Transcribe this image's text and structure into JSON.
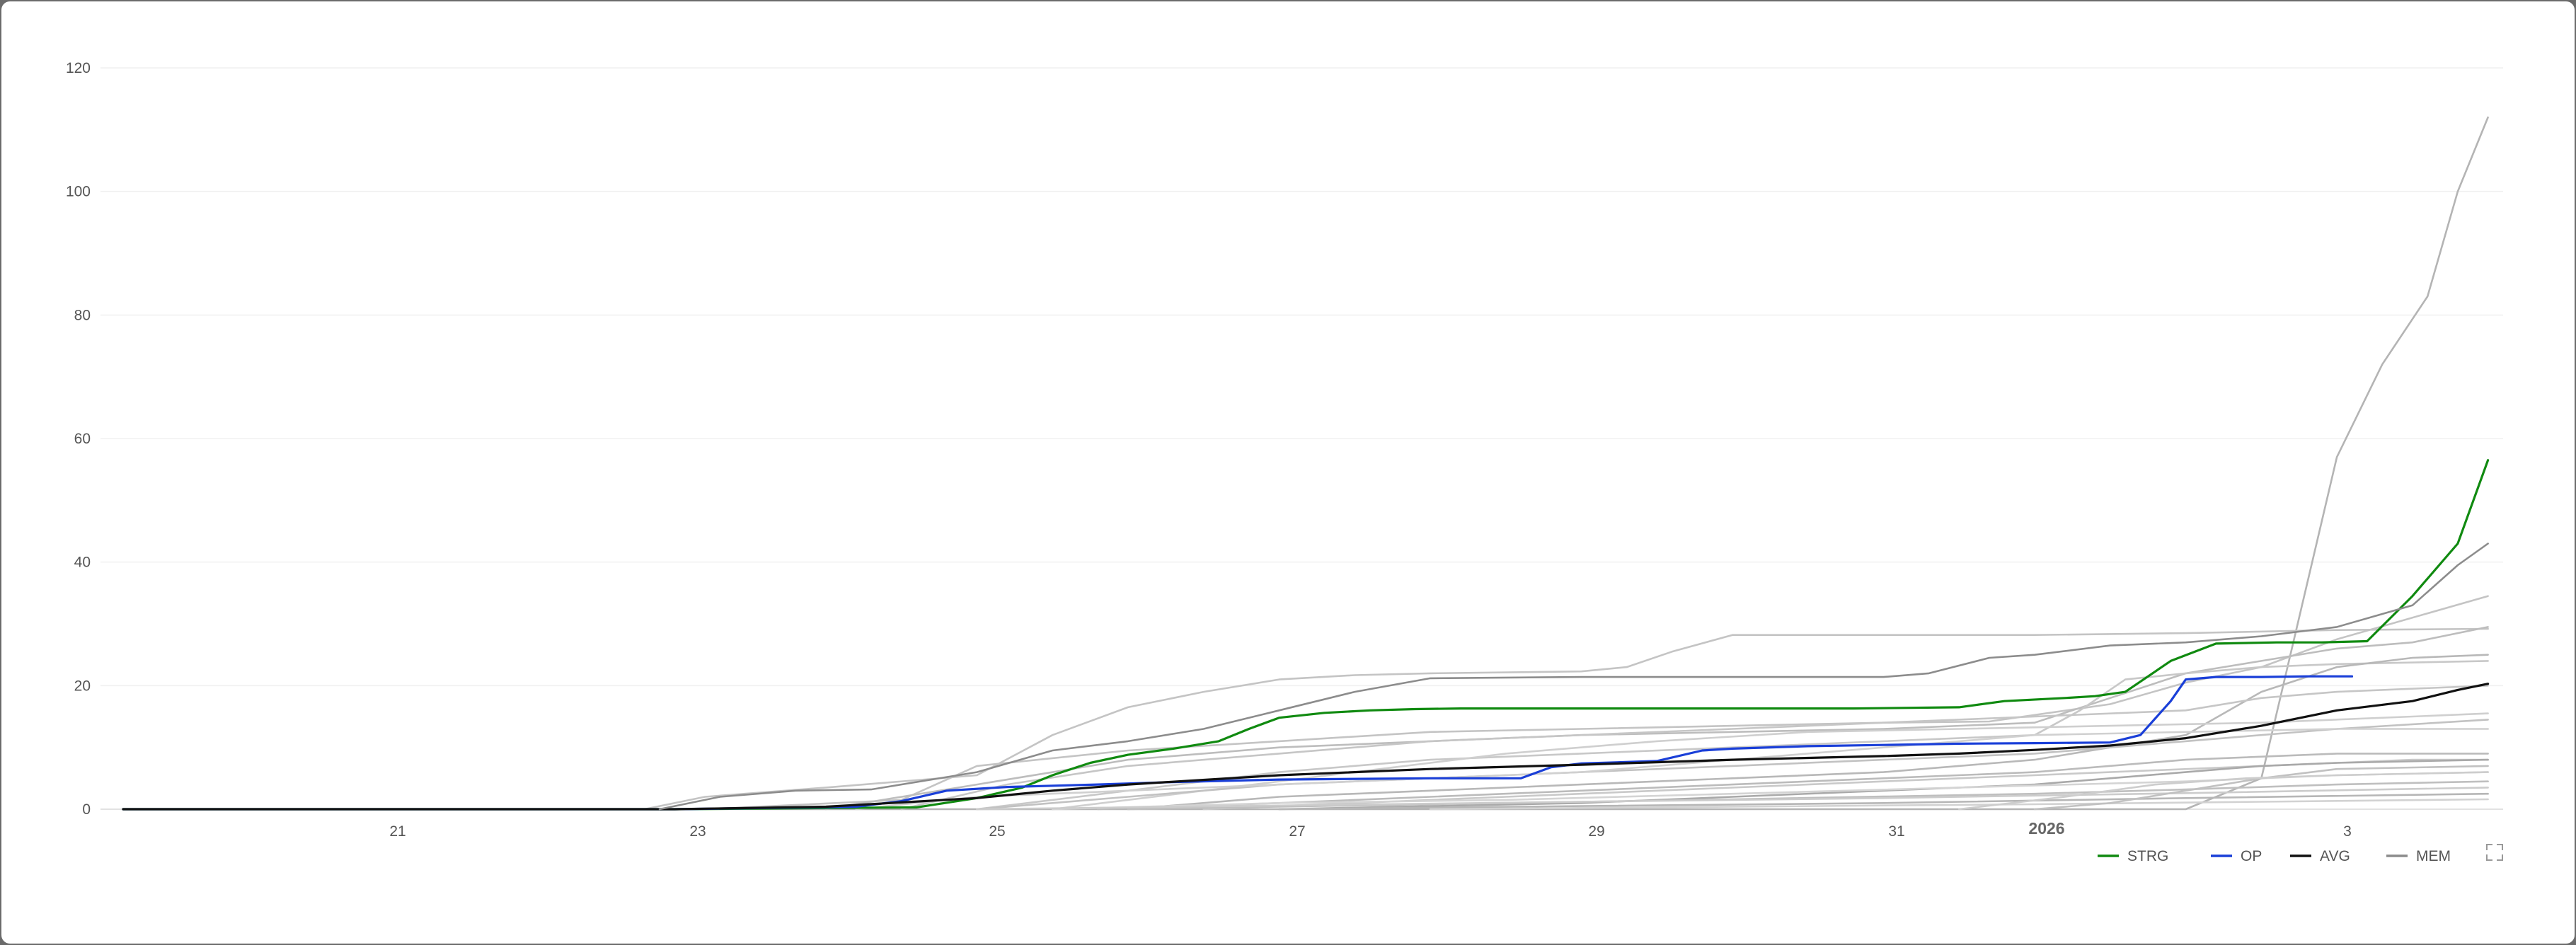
{
  "chart_data": {
    "type": "line",
    "x_tick_labels": [
      "21",
      "23",
      "25",
      "27",
      "29",
      "31",
      "2026",
      "3"
    ],
    "y_ticks": [
      0,
      20,
      40,
      60,
      80,
      100,
      120
    ],
    "ylim": [
      0,
      120
    ],
    "xlim": [
      19.2,
      35.1
    ],
    "grid": "horizontal",
    "legend_position": "bottom-right",
    "series": [
      {
        "name": "STRG",
        "color": "#108a10",
        "width": 3.2,
        "x": [
          19.35,
          23.0,
          24.0,
          24.6,
          25.0,
          25.3,
          25.5,
          25.75,
          26.0,
          26.3,
          26.6,
          26.8,
          27.0,
          27.3,
          27.6,
          27.9,
          28.2,
          29.0,
          30.0,
          30.8,
          31.5,
          31.8,
          32.2,
          32.4,
          32.6,
          32.9,
          33.2,
          33.6,
          33.9,
          34.2,
          34.5,
          34.8,
          35.0
        ],
        "y": [
          0,
          0,
          0.2,
          0.3,
          1.8,
          3.5,
          5.5,
          7.5,
          8.8,
          9.8,
          11,
          13,
          14.8,
          15.6,
          16,
          16.2,
          16.3,
          16.3,
          16.3,
          16.3,
          16.5,
          17.5,
          18,
          18.3,
          19,
          24,
          26.8,
          27,
          27,
          27.2,
          34.5,
          43,
          56.5
        ]
      },
      {
        "name": "OP",
        "color": "#1a3fd8",
        "width": 3.2,
        "x": [
          19.35,
          23.0,
          24.2,
          24.5,
          24.8,
          25.2,
          25.8,
          26.3,
          27.0,
          28.0,
          28.6,
          28.8,
          29.0,
          29.5,
          29.8,
          30.0,
          30.5,
          31.0,
          31.5,
          32.0,
          32.5,
          32.7,
          32.9,
          33.0,
          33.2,
          33.5,
          33.8,
          34.1
        ],
        "y": [
          0,
          0,
          0.4,
          1.3,
          3.0,
          3.6,
          4.0,
          4.4,
          4.8,
          5.0,
          5.0,
          6.8,
          7.4,
          7.8,
          9.5,
          9.8,
          10.2,
          10.4,
          10.6,
          10.7,
          10.8,
          12,
          17.5,
          21.0,
          21.4,
          21.4,
          21.5,
          21.5
        ]
      },
      {
        "name": "AVG",
        "color": "#111111",
        "width": 3.2,
        "x": [
          19.35,
          23.0,
          24.0,
          25.0,
          25.5,
          26.0,
          27.0,
          28.0,
          29.0,
          30.0,
          31.0,
          31.5,
          32.0,
          32.5,
          33.0,
          33.5,
          34.0,
          34.5,
          34.8,
          35.0
        ],
        "y": [
          0,
          0,
          0.4,
          1.8,
          3.0,
          4.0,
          5.5,
          6.5,
          7.2,
          8.0,
          8.6,
          9.0,
          9.6,
          10.3,
          11.5,
          13.5,
          16.0,
          17.5,
          19.3,
          20.3
        ]
      },
      {
        "name": "MEM",
        "color": "#8c8c8c",
        "width": 2.6,
        "x": [
          22.9,
          23.3,
          23.8,
          24.3,
          25.0,
          25.5,
          26.0,
          26.5,
          27.0,
          27.5,
          28.0,
          29.0,
          30.0,
          31.0,
          31.3,
          31.7,
          32.0,
          32.5,
          33.0,
          33.5,
          34.0,
          34.5,
          34.8,
          35.0
        ],
        "y": [
          0,
          2,
          3,
          3.2,
          6,
          9.5,
          11,
          13,
          16,
          19,
          21.2,
          21.4,
          21.4,
          21.4,
          22,
          24.5,
          25,
          26.5,
          27,
          28,
          29.5,
          33,
          39.5,
          43
        ]
      },
      {
        "name": "",
        "color": "#b4b4b4",
        "width": 2.6,
        "x": [
          19.35,
          33.0,
          33.5,
          34.0,
          34.3,
          34.6,
          34.8,
          35.0
        ],
        "y": [
          0,
          0,
          5,
          57,
          72,
          83,
          100,
          112
        ]
      },
      {
        "name": "",
        "color": "#c4c4c4",
        "width": 2.6,
        "x": [
          22.8,
          23.2,
          24.0,
          25.0,
          25.5,
          26.0,
          26.5,
          27.0,
          27.5,
          28.0,
          29.0,
          29.3,
          29.6,
          30.0,
          30.5,
          31.0,
          31.5,
          32.0,
          33.0,
          34.0,
          35.0
        ],
        "y": [
          0,
          2,
          3.5,
          5.5,
          12,
          16.5,
          19,
          21,
          21.7,
          22,
          22.3,
          23,
          25.5,
          28.2,
          28.2,
          28.2,
          28.2,
          28.2,
          28.5,
          29,
          29.2
        ]
      },
      {
        "name": "",
        "color": "#c4c4c4",
        "width": 2.6,
        "x": [
          23.2,
          24.5,
          25.0,
          26.0,
          27.0,
          28.0,
          29.0,
          30.0,
          31.0,
          31.7,
          32.5,
          33.0,
          33.5,
          34.0,
          35.0
        ],
        "y": [
          0,
          1.5,
          7,
          9.5,
          11,
          12.5,
          13,
          13.5,
          14,
          14.2,
          17,
          20.5,
          23,
          27.5,
          34.5
        ]
      },
      {
        "name": "",
        "color": "#bdbdbd",
        "width": 2.6,
        "x": [
          24.0,
          25.0,
          26.0,
          27.0,
          28.0,
          29.0,
          30.0,
          31.0,
          32.0,
          32.5,
          33.0,
          33.5,
          34.0,
          34.5,
          35.0
        ],
        "y": [
          0,
          4,
          8,
          10,
          11,
          12,
          12.5,
          13,
          14,
          18,
          22,
          24,
          26,
          27,
          29.5
        ]
      },
      {
        "name": "",
        "color": "#c8c8c8",
        "width": 2.6,
        "x": [
          25.0,
          26.0,
          27.0,
          28.0,
          29.0,
          30.0,
          31.0,
          32.0,
          32.3,
          32.6,
          33.0,
          33.5,
          34.0,
          35.0
        ],
        "y": [
          0,
          3,
          6,
          8,
          9,
          10,
          11,
          12,
          16,
          21,
          22,
          23,
          23.5,
          24
        ]
      },
      {
        "name": "",
        "color": "#b8b8b8",
        "width": 2.6,
        "x": [
          26.0,
          27.0,
          28.0,
          29.0,
          30.0,
          31.0,
          32.0,
          33.0,
          33.5,
          34.0,
          34.5,
          35.0
        ],
        "y": [
          0,
          2,
          3,
          4,
          5,
          6,
          8,
          12,
          19,
          23,
          24.5,
          25
        ]
      },
      {
        "name": "",
        "color": "#c6c6c6",
        "width": 2.6,
        "x": [
          24.5,
          25.2,
          26.0,
          27.0,
          28.0,
          29.0,
          30.0,
          31.0,
          32.0,
          33.0,
          33.5,
          34.0,
          35.0
        ],
        "y": [
          0,
          4,
          7,
          9,
          11,
          12,
          13,
          14,
          15,
          16,
          18,
          19,
          20
        ]
      },
      {
        "name": "",
        "color": "#cfcfcf",
        "width": 2.6,
        "x": [
          25.5,
          26.5,
          27.5,
          28.5,
          29.5,
          30.5,
          31.5,
          32.5,
          33.5,
          34.5,
          35.0
        ],
        "y": [
          0,
          3,
          6,
          9,
          11,
          12.5,
          13,
          13.5,
          14,
          15,
          15.5
        ]
      },
      {
        "name": "",
        "color": "#c2c2c2",
        "width": 2.6,
        "x": [
          25.0,
          26.0,
          27.0,
          28.0,
          29.0,
          30.0,
          31.0,
          32.0,
          33.0,
          34.0,
          35.0
        ],
        "y": [
          0,
          2,
          4,
          5,
          6,
          7,
          8,
          9,
          11,
          13,
          14.5
        ]
      },
      {
        "name": "",
        "color": "#d0d0d0",
        "width": 2.6,
        "x": [
          24.2,
          25.0,
          26.0,
          27.0,
          28.0,
          29.0,
          30.0,
          31.0,
          32.0,
          33.0,
          34.0,
          35.0
        ],
        "y": [
          0,
          2,
          3,
          4,
          5,
          6,
          8,
          10,
          12,
          12.5,
          13,
          13
        ]
      },
      {
        "name": "",
        "color": "#bbbbbb",
        "width": 2.6,
        "x": [
          25.8,
          27.0,
          28.0,
          29.0,
          30.0,
          31.0,
          32.0,
          33.0,
          34.0,
          35.0
        ],
        "y": [
          0,
          1,
          2,
          3,
          4,
          5,
          6,
          8,
          9,
          9
        ]
      },
      {
        "name": "",
        "color": "#c9c9c9",
        "width": 2.6,
        "x": [
          26.5,
          27.5,
          28.5,
          29.5,
          30.5,
          31.5,
          32.5,
          33.5,
          34.5,
          35.0
        ],
        "y": [
          0,
          1,
          2,
          3,
          4,
          5,
          6,
          7,
          8,
          8
        ]
      },
      {
        "name": "",
        "color": "#a9a9a9",
        "width": 2.6,
        "x": [
          27.0,
          28.0,
          29.0,
          30.0,
          31.0,
          32.0,
          32.5,
          33.0,
          33.5,
          34.0,
          35.0
        ],
        "y": [
          0,
          0.5,
          1,
          2,
          3,
          4,
          5,
          6,
          7,
          7.5,
          8
        ]
      },
      {
        "name": "",
        "color": "#d4d4d4",
        "width": 2.6,
        "x": [
          25.5,
          27.0,
          28.5,
          30.0,
          31.5,
          33.0,
          34.0,
          35.0
        ],
        "y": [
          0,
          1,
          1.5,
          2.5,
          3.5,
          4.5,
          5.5,
          6
        ]
      },
      {
        "name": "",
        "color": "#bfbfbf",
        "width": 2.6,
        "x": [
          26.0,
          28.0,
          30.0,
          32.0,
          33.0,
          34.0,
          35.0
        ],
        "y": [
          0,
          0.8,
          1.6,
          2.5,
          3.2,
          4.0,
          4.5
        ]
      },
      {
        "name": "",
        "color": "#cccccc",
        "width": 2.6,
        "x": [
          25.0,
          27.0,
          29.0,
          31.0,
          33.0,
          35.0
        ],
        "y": [
          0,
          0.6,
          1.2,
          1.8,
          2.6,
          3.5
        ]
      },
      {
        "name": "",
        "color": "#b6b6b6",
        "width": 2.6,
        "x": [
          27.0,
          29.0,
          31.0,
          33.0,
          35.0
        ],
        "y": [
          0,
          0.5,
          1.0,
          1.8,
          2.5
        ]
      },
      {
        "name": "",
        "color": "#d2d2d2",
        "width": 2.6,
        "x": [
          28.0,
          30.0,
          32.0,
          33.5,
          35.0
        ],
        "y": [
          0,
          0.4,
          0.8,
          1.2,
          1.6
        ]
      },
      {
        "name": "",
        "color": "#c1c1c1",
        "width": 2.6,
        "x": [
          32.0,
          32.5,
          33.0,
          33.5,
          34.0,
          35.0
        ],
        "y": [
          0,
          1,
          3,
          5,
          6.5,
          7
        ]
      },
      {
        "name": "",
        "color": "#cdcdcd",
        "width": 2.6,
        "x": [
          31.5,
          32.2,
          32.8,
          33.4,
          34.0,
          35.0
        ],
        "y": [
          0,
          2,
          4,
          5,
          5.5,
          6
        ]
      }
    ],
    "legend": [
      {
        "label": "STRG",
        "color": "#108a10"
      },
      {
        "label": "OP",
        "color": "#1a3fd8"
      },
      {
        "label": "AVG",
        "color": "#111111"
      },
      {
        "label": "MEM",
        "color": "#8c8c8c"
      }
    ]
  },
  "toolbar": {
    "fullscreen_icon": "fullscreen-icon"
  }
}
